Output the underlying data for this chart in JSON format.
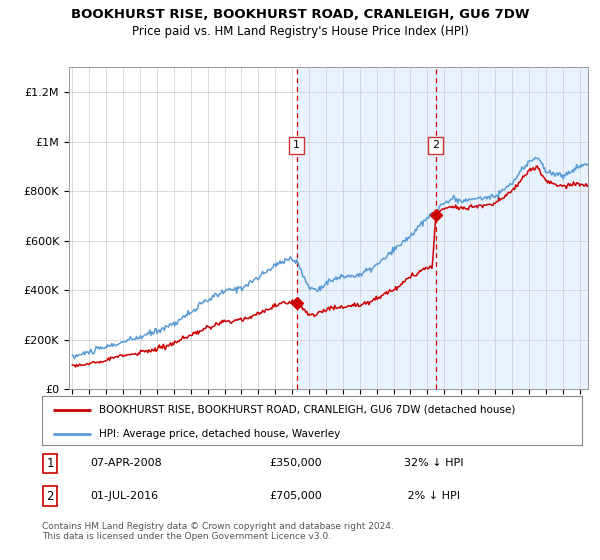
{
  "title": "BOOKHURST RISE, BOOKHURST ROAD, CRANLEIGH, GU6 7DW",
  "subtitle": "Price paid vs. HM Land Registry's House Price Index (HPI)",
  "ylim": [
    0,
    1300000
  ],
  "xlim_start": 1994.8,
  "xlim_end": 2025.5,
  "shade_start1": 2008.27,
  "shade_end2": 2025.5,
  "vline1_x": 2008.27,
  "vline2_x": 2016.5,
  "sale1_x": 2008.27,
  "sale1_y": 350000,
  "sale2_x": 2016.5,
  "sale2_y": 705000,
  "red_color": "#cc0000",
  "blue_color": "#5b9bd5",
  "shade_color": "#ddeeff",
  "legend_red_label": "BOOKHURST RISE, BOOKHURST ROAD, CRANLEIGH, GU6 7DW (detached house)",
  "legend_blue_label": "HPI: Average price, detached house, Waverley",
  "footer": "Contains HM Land Registry data © Crown copyright and database right 2024.\nThis data is licensed under the Open Government Licence v3.0.",
  "background_color": "#ffffff"
}
